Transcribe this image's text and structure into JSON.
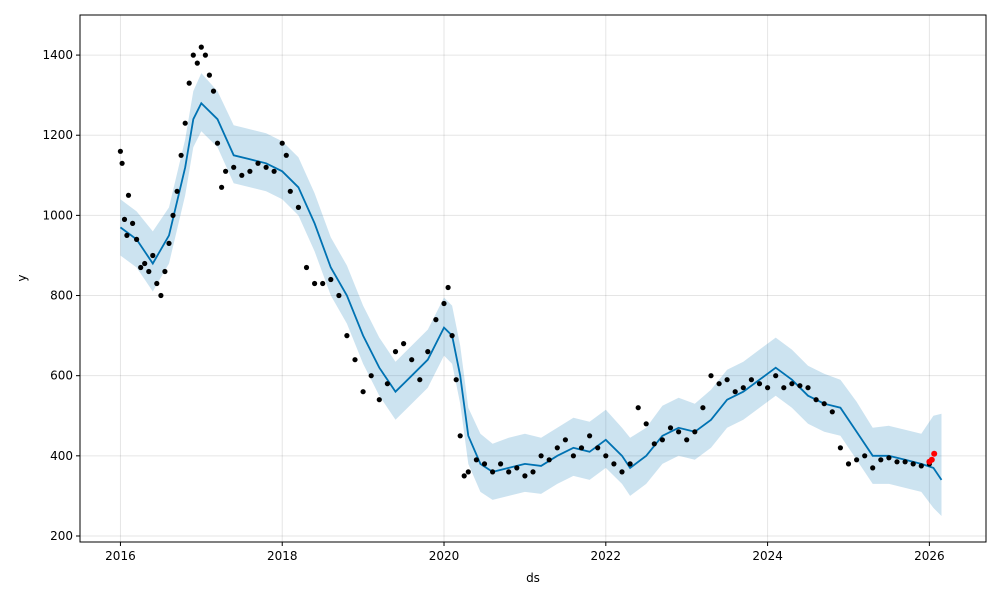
{
  "chart_data": {
    "type": "line",
    "title": "",
    "xlabel": "ds",
    "ylabel": "y",
    "xlim": [
      2015.5,
      2026.7
    ],
    "ylim": [
      185,
      1500
    ],
    "x_ticks": [
      2016,
      2018,
      2020,
      2022,
      2024,
      2026
    ],
    "x_tick_labels": [
      "2016",
      "2018",
      "2020",
      "2022",
      "2024",
      "2026"
    ],
    "y_ticks": [
      200,
      400,
      600,
      800,
      1000,
      1200,
      1400
    ],
    "y_tick_labels": [
      "200",
      "400",
      "600",
      "800",
      "1000",
      "1200",
      "1400"
    ],
    "grid": true,
    "legend": "none",
    "colors": {
      "forecast_line": "#0072b2",
      "uncertainty_band": "#0072b2",
      "observed_points": "#000000",
      "highlight_points": "#ff0000"
    },
    "series": [
      {
        "kind": "forecast",
        "x": [
          2016.0,
          2016.2,
          2016.4,
          2016.6,
          2016.8,
          2016.9,
          2017.0,
          2017.2,
          2017.4,
          2017.6,
          2017.8,
          2018.0,
          2018.2,
          2018.4,
          2018.6,
          2018.8,
          2019.0,
          2019.2,
          2019.4,
          2019.6,
          2019.8,
          2020.0,
          2020.1,
          2020.2,
          2020.3,
          2020.45,
          2020.6,
          2020.8,
          2021.0,
          2021.2,
          2021.4,
          2021.6,
          2021.8,
          2022.0,
          2022.2,
          2022.3,
          2022.5,
          2022.7,
          2022.9,
          2023.1,
          2023.3,
          2023.5,
          2023.7,
          2023.9,
          2024.1,
          2024.3,
          2024.5,
          2024.7,
          2024.9,
          2025.1,
          2025.3,
          2025.5,
          2025.7,
          2025.9,
          2026.05,
          2026.15
        ],
        "y": [
          970,
          940,
          880,
          950,
          1120,
          1240,
          1280,
          1240,
          1150,
          1140,
          1130,
          1110,
          1070,
          980,
          870,
          800,
          700,
          620,
          560,
          600,
          640,
          720,
          700,
          600,
          450,
          380,
          360,
          370,
          380,
          375,
          400,
          420,
          410,
          440,
          400,
          370,
          400,
          450,
          470,
          460,
          490,
          540,
          560,
          590,
          620,
          590,
          550,
          530,
          520,
          460,
          400,
          400,
          390,
          380,
          370,
          340
        ],
        "upper": [
          1040,
          1010,
          960,
          1020,
          1190,
          1310,
          1355,
          1310,
          1225,
          1215,
          1205,
          1185,
          1145,
          1055,
          945,
          875,
          775,
          695,
          635,
          675,
          715,
          795,
          775,
          675,
          520,
          455,
          430,
          445,
          455,
          445,
          470,
          495,
          485,
          515,
          470,
          445,
          470,
          525,
          545,
          530,
          565,
          615,
          635,
          665,
          695,
          665,
          625,
          605,
          590,
          535,
          470,
          475,
          465,
          455,
          500,
          505
        ],
        "lower": [
          900,
          870,
          810,
          880,
          1050,
          1170,
          1210,
          1170,
          1080,
          1070,
          1060,
          1040,
          1000,
          910,
          800,
          730,
          630,
          550,
          490,
          530,
          570,
          650,
          630,
          530,
          380,
          310,
          290,
          300,
          310,
          305,
          330,
          350,
          340,
          370,
          330,
          300,
          330,
          380,
          400,
          390,
          420,
          470,
          490,
          520,
          550,
          520,
          480,
          460,
          450,
          390,
          330,
          330,
          320,
          310,
          270,
          250
        ]
      },
      {
        "kind": "observed",
        "x": [
          2016.0,
          2016.02,
          2016.05,
          2016.08,
          2016.1,
          2016.15,
          2016.2,
          2016.25,
          2016.3,
          2016.35,
          2016.4,
          2016.45,
          2016.5,
          2016.55,
          2016.6,
          2016.65,
          2016.7,
          2016.75,
          2016.8,
          2016.85,
          2016.9,
          2016.95,
          2017.0,
          2017.05,
          2017.1,
          2017.15,
          2017.2,
          2017.25,
          2017.3,
          2017.4,
          2017.5,
          2017.6,
          2017.7,
          2017.8,
          2017.9,
          2018.0,
          2018.05,
          2018.1,
          2018.2,
          2018.3,
          2018.4,
          2018.5,
          2018.6,
          2018.7,
          2018.8,
          2018.9,
          2019.0,
          2019.1,
          2019.2,
          2019.3,
          2019.4,
          2019.5,
          2019.6,
          2019.7,
          2019.8,
          2019.9,
          2020.0,
          2020.05,
          2020.1,
          2020.15,
          2020.2,
          2020.25,
          2020.3,
          2020.4,
          2020.5,
          2020.6,
          2020.7,
          2020.8,
          2020.9,
          2021.0,
          2021.1,
          2021.2,
          2021.3,
          2021.4,
          2021.5,
          2021.6,
          2021.7,
          2021.8,
          2021.9,
          2022.0,
          2022.1,
          2022.2,
          2022.3,
          2022.4,
          2022.5,
          2022.6,
          2022.7,
          2022.8,
          2022.9,
          2023.0,
          2023.1,
          2023.2,
          2023.3,
          2023.4,
          2023.5,
          2023.6,
          2023.7,
          2023.8,
          2023.9,
          2024.0,
          2024.1,
          2024.2,
          2024.3,
          2024.4,
          2024.5,
          2024.6,
          2024.7,
          2024.8,
          2024.9,
          2025.0,
          2025.1,
          2025.2,
          2025.3,
          2025.4,
          2025.5,
          2025.6,
          2025.7,
          2025.8,
          2025.9,
          2026.0
        ],
        "y": [
          1160,
          1130,
          990,
          950,
          1050,
          980,
          940,
          870,
          880,
          860,
          900,
          830,
          800,
          860,
          930,
          1000,
          1060,
          1150,
          1230,
          1330,
          1400,
          1380,
          1420,
          1400,
          1350,
          1310,
          1180,
          1070,
          1110,
          1120,
          1100,
          1110,
          1130,
          1120,
          1110,
          1180,
          1150,
          1060,
          1020,
          870,
          830,
          830,
          840,
          800,
          700,
          640,
          560,
          600,
          540,
          580,
          660,
          680,
          640,
          590,
          660,
          740,
          780,
          820,
          700,
          590,
          450,
          350,
          360,
          390,
          380,
          360,
          380,
          360,
          370,
          350,
          360,
          400,
          390,
          420,
          440,
          400,
          420,
          450,
          420,
          400,
          380,
          360,
          380,
          520,
          480,
          430,
          440,
          470,
          460,
          440,
          460,
          520,
          600,
          580,
          590,
          560,
          570,
          590,
          580,
          570,
          600,
          570,
          580,
          575,
          570,
          540,
          530,
          510,
          420,
          380,
          390,
          400,
          370,
          390,
          395,
          385,
          385,
          380,
          375,
          380
        ]
      },
      {
        "kind": "highlight",
        "x": [
          2026.0,
          2026.03,
          2026.06
        ],
        "y": [
          385,
          390,
          405
        ]
      }
    ]
  }
}
